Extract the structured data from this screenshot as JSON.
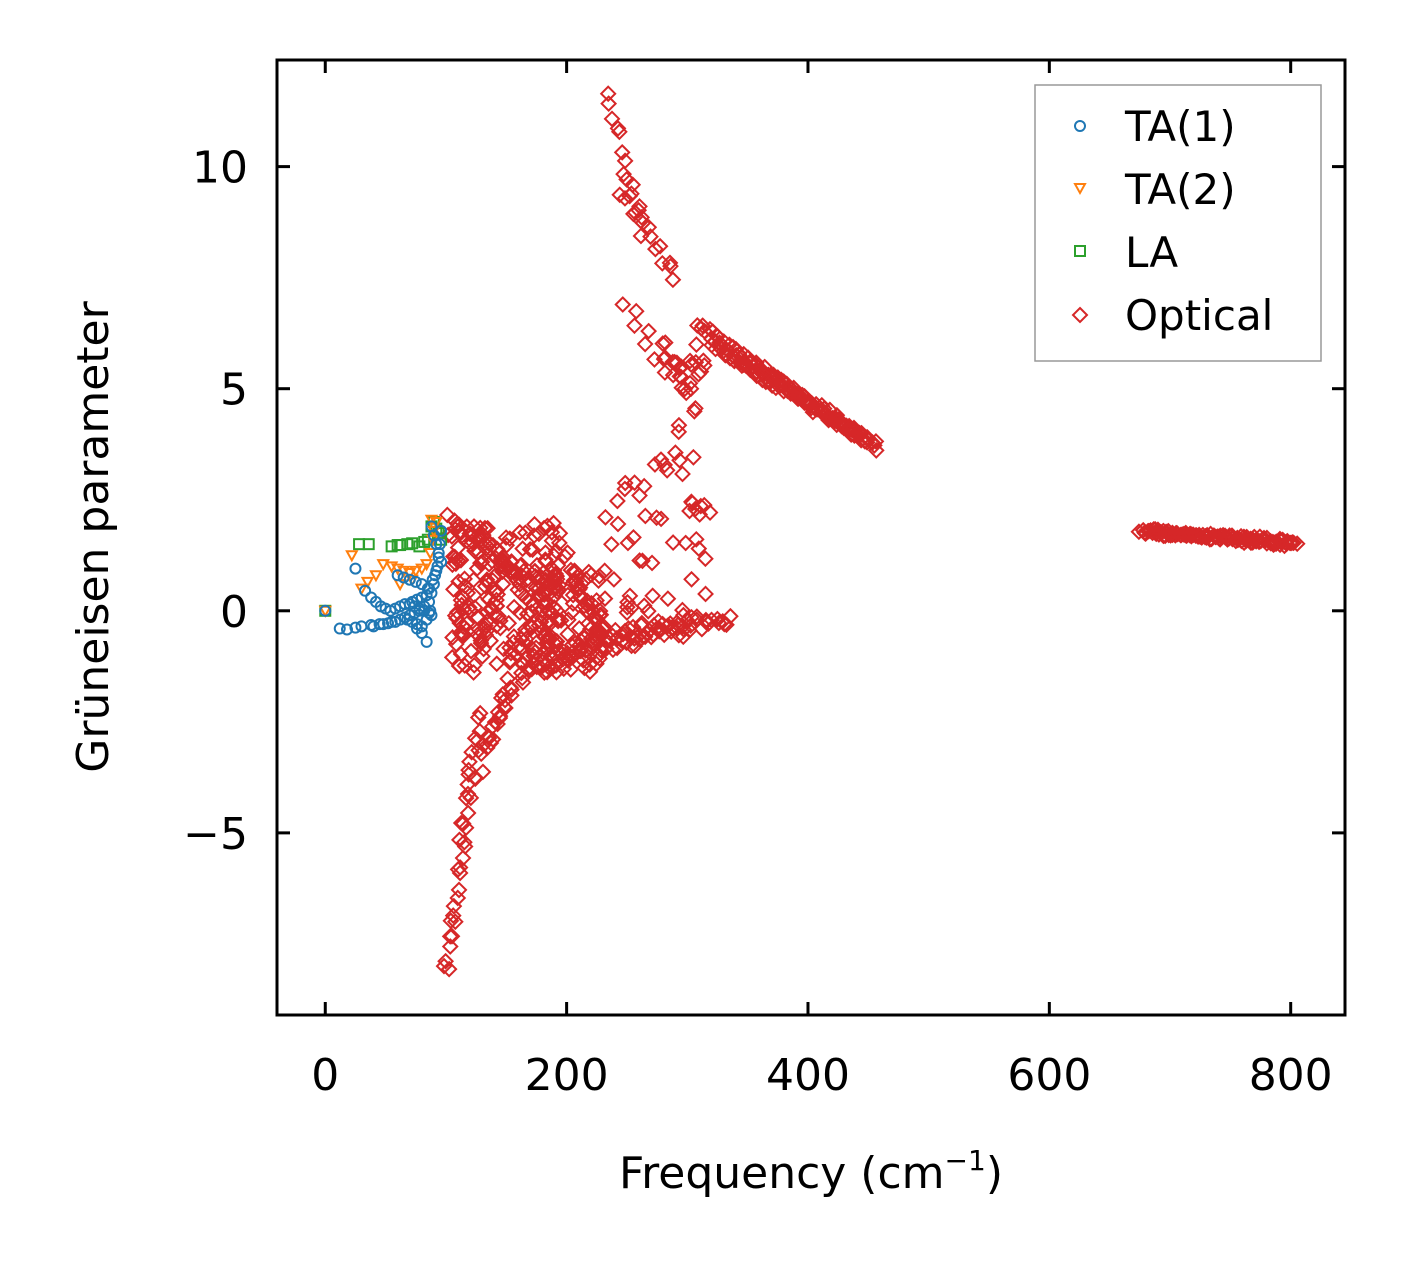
{
  "chart_data": {
    "type": "scatter",
    "title": "",
    "xlabel": "Frequency (cm",
    "xlabel_sup": "−1",
    "xlabel_close": ")",
    "ylabel": "Grüneisen parameter",
    "xlim": [
      -40,
      845
    ],
    "ylim": [
      -9.1,
      12.4
    ],
    "xticks": [
      0,
      200,
      400,
      600,
      800
    ],
    "xtick_labels": [
      "0",
      "200",
      "400",
      "600",
      "800"
    ],
    "yticks": [
      -5,
      0,
      5,
      10
    ],
    "ytick_labels": [
      "−5",
      "0",
      "5",
      "10"
    ],
    "grid": false,
    "legend_position": "top-right",
    "series": [
      {
        "name": "TA(1)",
        "marker": "circle",
        "color": "#1f77b4",
        "points": [
          [
            0,
            0
          ],
          [
            12,
            -0.4
          ],
          [
            18,
            -0.42
          ],
          [
            25,
            -0.38
          ],
          [
            30,
            -0.35
          ],
          [
            38,
            -0.32
          ],
          [
            45,
            -0.3
          ],
          [
            52,
            -0.28
          ],
          [
            58,
            -0.25
          ],
          [
            62,
            -0.2
          ],
          [
            66,
            -0.15
          ],
          [
            70,
            -0.1
          ],
          [
            74,
            -0.05
          ],
          [
            78,
            0
          ],
          [
            82,
            0.1
          ],
          [
            86,
            0.2
          ],
          [
            88,
            0.4
          ],
          [
            90,
            0.6
          ],
          [
            92,
            0.9
          ],
          [
            94,
            1.2
          ],
          [
            95,
            1.5
          ],
          [
            96,
            1.8
          ],
          [
            25,
            0.95
          ],
          [
            33,
            0.45
          ],
          [
            38,
            0.3
          ],
          [
            42,
            0.2
          ],
          [
            46,
            0.1
          ],
          [
            50,
            0.05
          ],
          [
            54,
            0
          ],
          [
            58,
            0.05
          ],
          [
            62,
            0.1
          ],
          [
            66,
            0.15
          ],
          [
            70,
            0.15
          ],
          [
            74,
            0.1
          ],
          [
            78,
            0.05
          ],
          [
            82,
            0
          ],
          [
            86,
            -0.05
          ],
          [
            88,
            -0.1
          ],
          [
            84,
            -0.7
          ],
          [
            80,
            -0.5
          ],
          [
            76,
            -0.4
          ],
          [
            40,
            -0.35
          ],
          [
            48,
            -0.3
          ],
          [
            55,
            -0.25
          ],
          [
            60,
            0.8
          ],
          [
            65,
            0.75
          ],
          [
            70,
            0.7
          ],
          [
            75,
            0.65
          ],
          [
            80,
            0.6
          ],
          [
            85,
            0.5
          ],
          [
            88,
            1.9
          ],
          [
            90,
            1.7
          ],
          [
            92,
            1.5
          ],
          [
            94,
            1.3
          ],
          [
            96,
            1.1
          ],
          [
            72,
            0.2
          ],
          [
            76,
            0.25
          ],
          [
            80,
            0.3
          ],
          [
            84,
            0.35
          ],
          [
            86,
            0.5
          ],
          [
            89,
            0.7
          ],
          [
            91,
            0.8
          ],
          [
            93,
            1.0
          ],
          [
            68,
            -0.2
          ],
          [
            72,
            -0.25
          ],
          [
            76,
            -0.3
          ],
          [
            80,
            -0.35
          ],
          [
            84,
            -0.2
          ],
          [
            87,
            0
          ]
        ]
      },
      {
        "name": "TA(2)",
        "marker": "triangle-down",
        "color": "#ff7f0e",
        "points": [
          [
            0,
            0
          ],
          [
            22,
            1.25
          ],
          [
            35,
            0.65
          ],
          [
            48,
            1.05
          ],
          [
            55,
            1.0
          ],
          [
            60,
            0.95
          ],
          [
            65,
            0.9
          ],
          [
            70,
            0.85
          ],
          [
            75,
            0.9
          ],
          [
            80,
            0.95
          ],
          [
            84,
            1.05
          ],
          [
            87,
            1.3
          ],
          [
            89,
            1.6
          ],
          [
            90,
            1.8
          ],
          [
            92,
            2.0
          ],
          [
            88,
            2.05
          ],
          [
            30,
            0.5
          ],
          [
            42,
            0.8
          ],
          [
            62,
            0.6
          ],
          [
            72,
            0.7
          ]
        ]
      },
      {
        "name": "LA",
        "marker": "square",
        "color": "#2ca02c",
        "points": [
          [
            0,
            0
          ],
          [
            28,
            1.5
          ],
          [
            36,
            1.5
          ],
          [
            55,
            1.45
          ],
          [
            60,
            1.48
          ],
          [
            68,
            1.5
          ],
          [
            72,
            1.52
          ],
          [
            78,
            1.45
          ],
          [
            85,
            1.6
          ],
          [
            88,
            1.9
          ],
          [
            90,
            2.0
          ],
          [
            92,
            1.85
          ],
          [
            94,
            1.75
          ],
          [
            96,
            1.6
          ],
          [
            62,
            1.48
          ],
          [
            82,
            1.55
          ]
        ]
      },
      {
        "name": "Optical",
        "marker": "diamond",
        "color": "#d62728",
        "generated": true
      }
    ]
  },
  "legend": {
    "items": [
      {
        "label": "TA(1)"
      },
      {
        "label": "TA(2)"
      },
      {
        "label": "LA"
      },
      {
        "label": "Optical"
      }
    ]
  }
}
